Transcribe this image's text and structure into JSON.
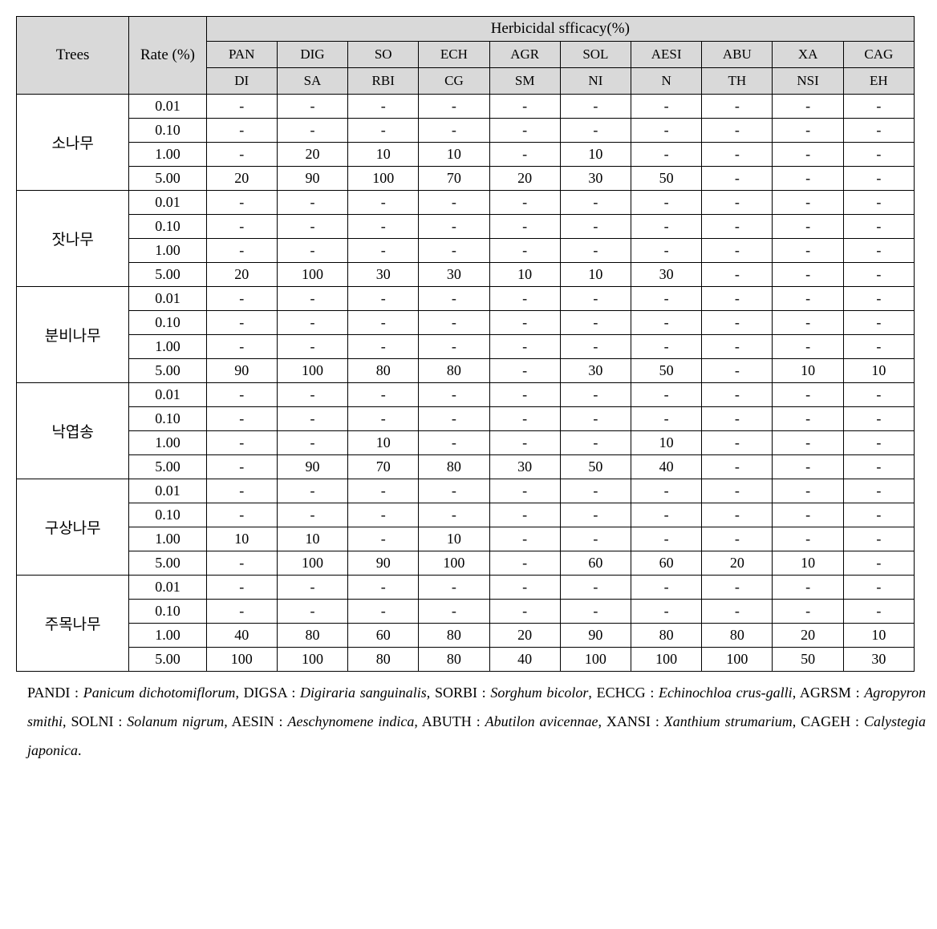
{
  "header": {
    "trees": "Trees",
    "rate": "Rate (%)",
    "group": "Herbicidal sfficacy(%)",
    "species": [
      {
        "l1": "PAN",
        "l2": "DI"
      },
      {
        "l1": "DIG",
        "l2": "SA"
      },
      {
        "l1": "SO",
        "l2": "RBI"
      },
      {
        "l1": "ECH",
        "l2": "CG"
      },
      {
        "l1": "AGR",
        "l2": "SM"
      },
      {
        "l1": "SOL",
        "l2": "NI"
      },
      {
        "l1": "AESI",
        "l2": "N"
      },
      {
        "l1": "ABU",
        "l2": "TH"
      },
      {
        "l1": "XA",
        "l2": "NSI"
      },
      {
        "l1": "CAG",
        "l2": "EH"
      }
    ]
  },
  "trees": [
    {
      "name": "소나무",
      "rows": [
        {
          "rate": "0.01",
          "vals": [
            "-",
            "-",
            "-",
            "-",
            "-",
            "-",
            "-",
            "-",
            "-",
            "-"
          ]
        },
        {
          "rate": "0.10",
          "vals": [
            "-",
            "-",
            "-",
            "-",
            "-",
            "-",
            "-",
            "-",
            "-",
            "-"
          ]
        },
        {
          "rate": "1.00",
          "vals": [
            "-",
            "20",
            "10",
            "10",
            "-",
            "10",
            "-",
            "-",
            "-",
            "-"
          ]
        },
        {
          "rate": "5.00",
          "vals": [
            "20",
            "90",
            "100",
            "70",
            "20",
            "30",
            "50",
            "-",
            "-",
            "-"
          ]
        }
      ]
    },
    {
      "name": "잣나무",
      "rows": [
        {
          "rate": "0.01",
          "vals": [
            "-",
            "-",
            "-",
            "-",
            "-",
            "-",
            "-",
            "-",
            "-",
            "-"
          ]
        },
        {
          "rate": "0.10",
          "vals": [
            "-",
            "-",
            "-",
            "-",
            "-",
            "-",
            "-",
            "-",
            "-",
            "-"
          ]
        },
        {
          "rate": "1.00",
          "vals": [
            "-",
            "-",
            "-",
            "-",
            "-",
            "-",
            "-",
            "-",
            "-",
            "-"
          ]
        },
        {
          "rate": "5.00",
          "vals": [
            "20",
            "100",
            "30",
            "30",
            "10",
            "10",
            "30",
            "-",
            "-",
            "-"
          ]
        }
      ]
    },
    {
      "name": "분비나무",
      "rows": [
        {
          "rate": "0.01",
          "vals": [
            "-",
            "-",
            "-",
            "-",
            "-",
            "-",
            "-",
            "-",
            "-",
            "-"
          ]
        },
        {
          "rate": "0.10",
          "vals": [
            "-",
            "-",
            "-",
            "-",
            "-",
            "-",
            "-",
            "-",
            "-",
            "-"
          ]
        },
        {
          "rate": "1.00",
          "vals": [
            "-",
            "-",
            "-",
            "-",
            "-",
            "-",
            "-",
            "-",
            "-",
            "-"
          ]
        },
        {
          "rate": "5.00",
          "vals": [
            "90",
            "100",
            "80",
            "80",
            "-",
            "30",
            "50",
            "-",
            "10",
            "10"
          ]
        }
      ]
    },
    {
      "name": "낙엽송",
      "rows": [
        {
          "rate": "0.01",
          "vals": [
            "-",
            "-",
            "-",
            "-",
            "-",
            "-",
            "-",
            "-",
            "-",
            "-"
          ]
        },
        {
          "rate": "0.10",
          "vals": [
            "-",
            "-",
            "-",
            "-",
            "-",
            "-",
            "-",
            "-",
            "-",
            "-"
          ]
        },
        {
          "rate": "1.00",
          "vals": [
            "-",
            "-",
            "10",
            "-",
            "-",
            "-",
            "10",
            "-",
            "-",
            "-"
          ]
        },
        {
          "rate": "5.00",
          "vals": [
            "-",
            "90",
            "70",
            "80",
            "30",
            "50",
            "40",
            "-",
            "-",
            "-"
          ]
        }
      ]
    },
    {
      "name": "구상나무",
      "rows": [
        {
          "rate": "0.01",
          "vals": [
            "-",
            "-",
            "-",
            "-",
            "-",
            "-",
            "-",
            "-",
            "-",
            "-"
          ]
        },
        {
          "rate": "0.10",
          "vals": [
            "-",
            "-",
            "-",
            "-",
            "-",
            "-",
            "-",
            "-",
            "-",
            "-"
          ]
        },
        {
          "rate": "1.00",
          "vals": [
            "10",
            "10",
            "-",
            "10",
            "-",
            "-",
            "-",
            "-",
            "-",
            "-"
          ]
        },
        {
          "rate": "5.00",
          "vals": [
            "-",
            "100",
            "90",
            "100",
            "-",
            "60",
            "60",
            "20",
            "10",
            "-"
          ]
        }
      ]
    },
    {
      "name": "주목나무",
      "rows": [
        {
          "rate": "0.01",
          "vals": [
            "-",
            "-",
            "-",
            "-",
            "-",
            "-",
            "-",
            "-",
            "-",
            "-"
          ]
        },
        {
          "rate": "0.10",
          "vals": [
            "-",
            "-",
            "-",
            "-",
            "-",
            "-",
            "-",
            "-",
            "-",
            "-"
          ]
        },
        {
          "rate": "1.00",
          "vals": [
            "40",
            "80",
            "60",
            "80",
            "20",
            "90",
            "80",
            "80",
            "20",
            "10"
          ]
        },
        {
          "rate": "5.00",
          "vals": [
            "100",
            "100",
            "80",
            "80",
            "40",
            "100",
            "100",
            "100",
            "50",
            "30"
          ]
        }
      ]
    }
  ],
  "footnote": {
    "entries": [
      {
        "code": "PANDI",
        "latin": "Panicum dichotomiflorum"
      },
      {
        "code": "DIGSA",
        "latin": "Digiraria sanguinalis"
      },
      {
        "code": "SORBI",
        "latin": "Sorghum bicolor"
      },
      {
        "code": "ECHCG",
        "latin": "Echinochloa crus-galli"
      },
      {
        "code": "AGRSM",
        "latin": "Agropyron smithi"
      },
      {
        "code": "SOLNI",
        "latin": "Solanum nigrum"
      },
      {
        "code": "AESIN",
        "latin": "Aeschynomene indica"
      },
      {
        "code": "ABUTH",
        "latin": "Abutilon avicennae"
      },
      {
        "code": "XANSI",
        "latin": "Xanthium strumarium"
      },
      {
        "code": "CAGEH",
        "latin": "Calystegia japonica"
      }
    ],
    "sep": ", ",
    "colon": " : ",
    "period": "."
  },
  "style": {
    "header_bg": "#d9d9d9",
    "border_color": "#000000",
    "background": "#ffffff",
    "font_family": "Times New Roman, serif"
  }
}
